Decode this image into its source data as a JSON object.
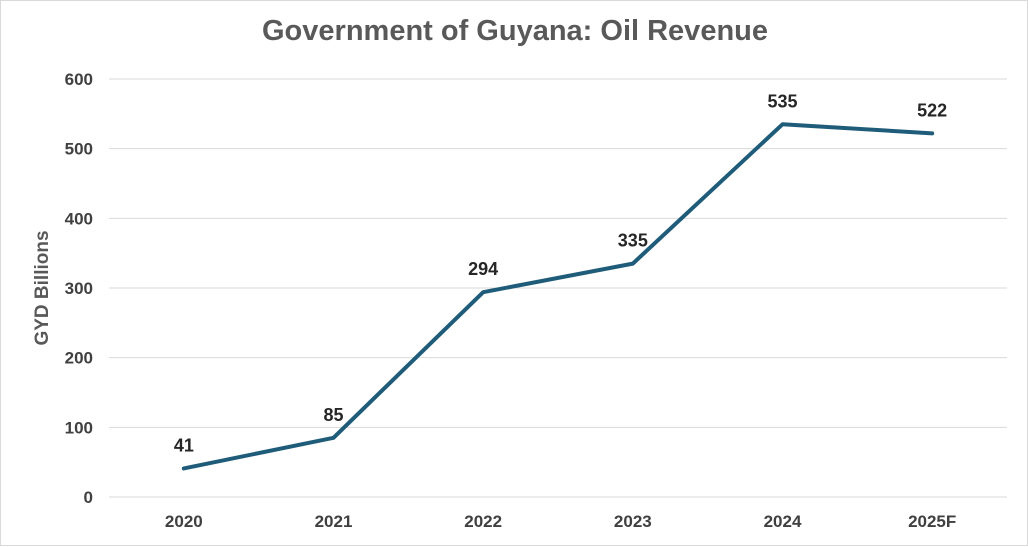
{
  "chart_data": {
    "type": "line",
    "title": "Government of Guyana: Oil Revenue",
    "xlabel": "",
    "ylabel": "GYD Billions",
    "categories": [
      "2020",
      "2021",
      "2022",
      "2023",
      "2024",
      "2025F"
    ],
    "series": [
      {
        "values": [
          41,
          85,
          294,
          335,
          535,
          522
        ],
        "color": "#1f5c7a"
      }
    ],
    "data_labels": [
      "41",
      "85",
      "294",
      "335",
      "535",
      "522"
    ],
    "ylim": [
      0,
      600
    ],
    "yticks": [
      0,
      100,
      200,
      300,
      400,
      500,
      600
    ],
    "ytick_labels": [
      "0",
      "100",
      "200",
      "300",
      "400",
      "500",
      "600"
    ],
    "grid": true,
    "legend": "none",
    "gridline_color": "#d9d9d9"
  }
}
